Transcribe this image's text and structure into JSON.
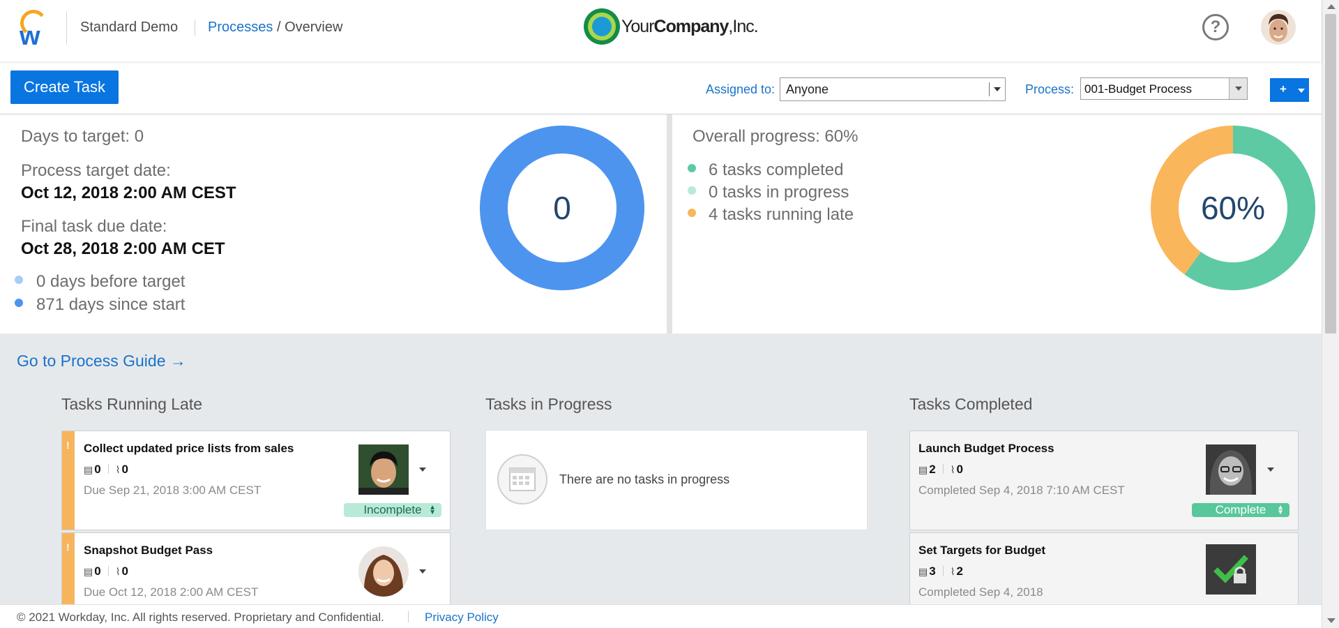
{
  "header": {
    "tenant": "Standard Demo",
    "breadcrumb_link": "Processes",
    "breadcrumb_sep": "/",
    "breadcrumb_current": "Overview",
    "company_logo_prefix": "Your",
    "company_logo_bold": "Company",
    "company_logo_suffix": ",Inc.",
    "help_label": "?",
    "icons": [
      "workday-logo-icon",
      "company-logo-icon",
      "help-icon",
      "avatar"
    ]
  },
  "toolbar": {
    "create_task": "Create Task",
    "assigned_label": "Assigned to:",
    "assigned_value": "Anyone",
    "process_label": "Process:",
    "process_value": "001-Budget Process",
    "add_label": "+"
  },
  "target": {
    "days_to_target": "Days to target: 0",
    "target_date_label": "Process target date:",
    "target_date_value": "Oct 12, 2018 2:00 AM CEST",
    "final_due_label": "Final task due date:",
    "final_due_value": "Oct 28, 2018 2:00 AM CET",
    "legend": [
      {
        "label": "0 days before target",
        "color": "#a8cdf5"
      },
      {
        "label": "871 days since start",
        "color": "#4d94ef"
      }
    ],
    "donut_value": "0",
    "donut_fraction_before_target": 0,
    "donut_color": "#4d94ef"
  },
  "progress": {
    "overall": "Overall progress: 60%",
    "legend": [
      {
        "label": "6 tasks completed",
        "color": "#5dcaa3"
      },
      {
        "label": "0 tasks in progress",
        "color": "#b8ead7"
      },
      {
        "label": "4 tasks running late",
        "color": "#f9b65b"
      }
    ],
    "donut_value": "60%",
    "completed_fraction": 0.6,
    "late_fraction": 0.4
  },
  "main": {
    "guide_link": "Go to Process Guide →",
    "columns": {
      "late": "Tasks Running Late",
      "in_progress": "Tasks in Progress",
      "completed": "Tasks Completed"
    },
    "late_tasks": [
      {
        "title": "Collect updated price lists from sales",
        "notes": "0",
        "attachments": "0",
        "due": "Due Sep 21, 2018 3:00 AM CEST",
        "status": "Incomplete"
      },
      {
        "title": "Snapshot Budget Pass",
        "notes": "0",
        "attachments": "0",
        "due": "Due Oct 12, 2018 2:00 AM CEST"
      }
    ],
    "in_progress_empty": "There are no tasks in progress",
    "completed_tasks": [
      {
        "title": "Launch Budget Process",
        "notes": "2",
        "attachments": "0",
        "due": "Completed Sep 4, 2018 7:10 AM CEST",
        "status": "Complete"
      },
      {
        "title": "Set Targets for Budget",
        "notes": "3",
        "attachments": "2",
        "due": "Completed Sep 4, 2018"
      }
    ],
    "flag": "!"
  },
  "footer": {
    "copyright": "© 2021 Workday, Inc. All rights reserved. Proprietary and Confidential.",
    "privacy": "Privacy Policy"
  }
}
